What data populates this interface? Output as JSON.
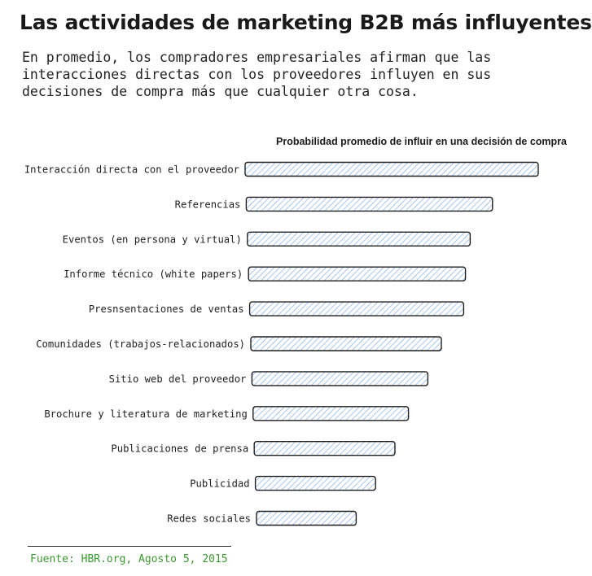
{
  "header": {
    "title": "Las actividades de marketing B2B más influyentes",
    "subtitle": "En promedio, los compradores empresariales afirman que las interacciones directas con los proveedores influyen en sus decisiones de compra más que cualquier otra cosa."
  },
  "footer": {
    "source": "Fuente: HBR.org, Agosto 5, 2015"
  },
  "colors": {
    "title": "#1a1a1a",
    "bar_stroke": "#1f1f1f",
    "bar_hatch": "#8fb8e8",
    "source": "#3a9a2f"
  },
  "chart_data": {
    "type": "bar",
    "orientation": "horizontal",
    "title": "Probabilidad promedio de influir en una decisión de compra",
    "xlabel": "",
    "ylabel": "",
    "categories": [
      "Interacción directa con el proveedor",
      "Referencias",
      "Eventos (en persona y virtual)",
      "Informe técnico (white papers)",
      "Presnsentaciones de ventas",
      "Comunidades (trabajos-relacionados)",
      "Sitio web del proveedor",
      "Brochure y literatura de marketing",
      "Publicaciones de prensa",
      "Publicidad",
      "Redes sociales"
    ],
    "values": [
      100,
      84,
      76,
      74,
      73,
      65,
      60,
      53,
      48,
      41,
      34
    ],
    "xlim": [
      0,
      100
    ],
    "grid": false,
    "legend": "none"
  }
}
